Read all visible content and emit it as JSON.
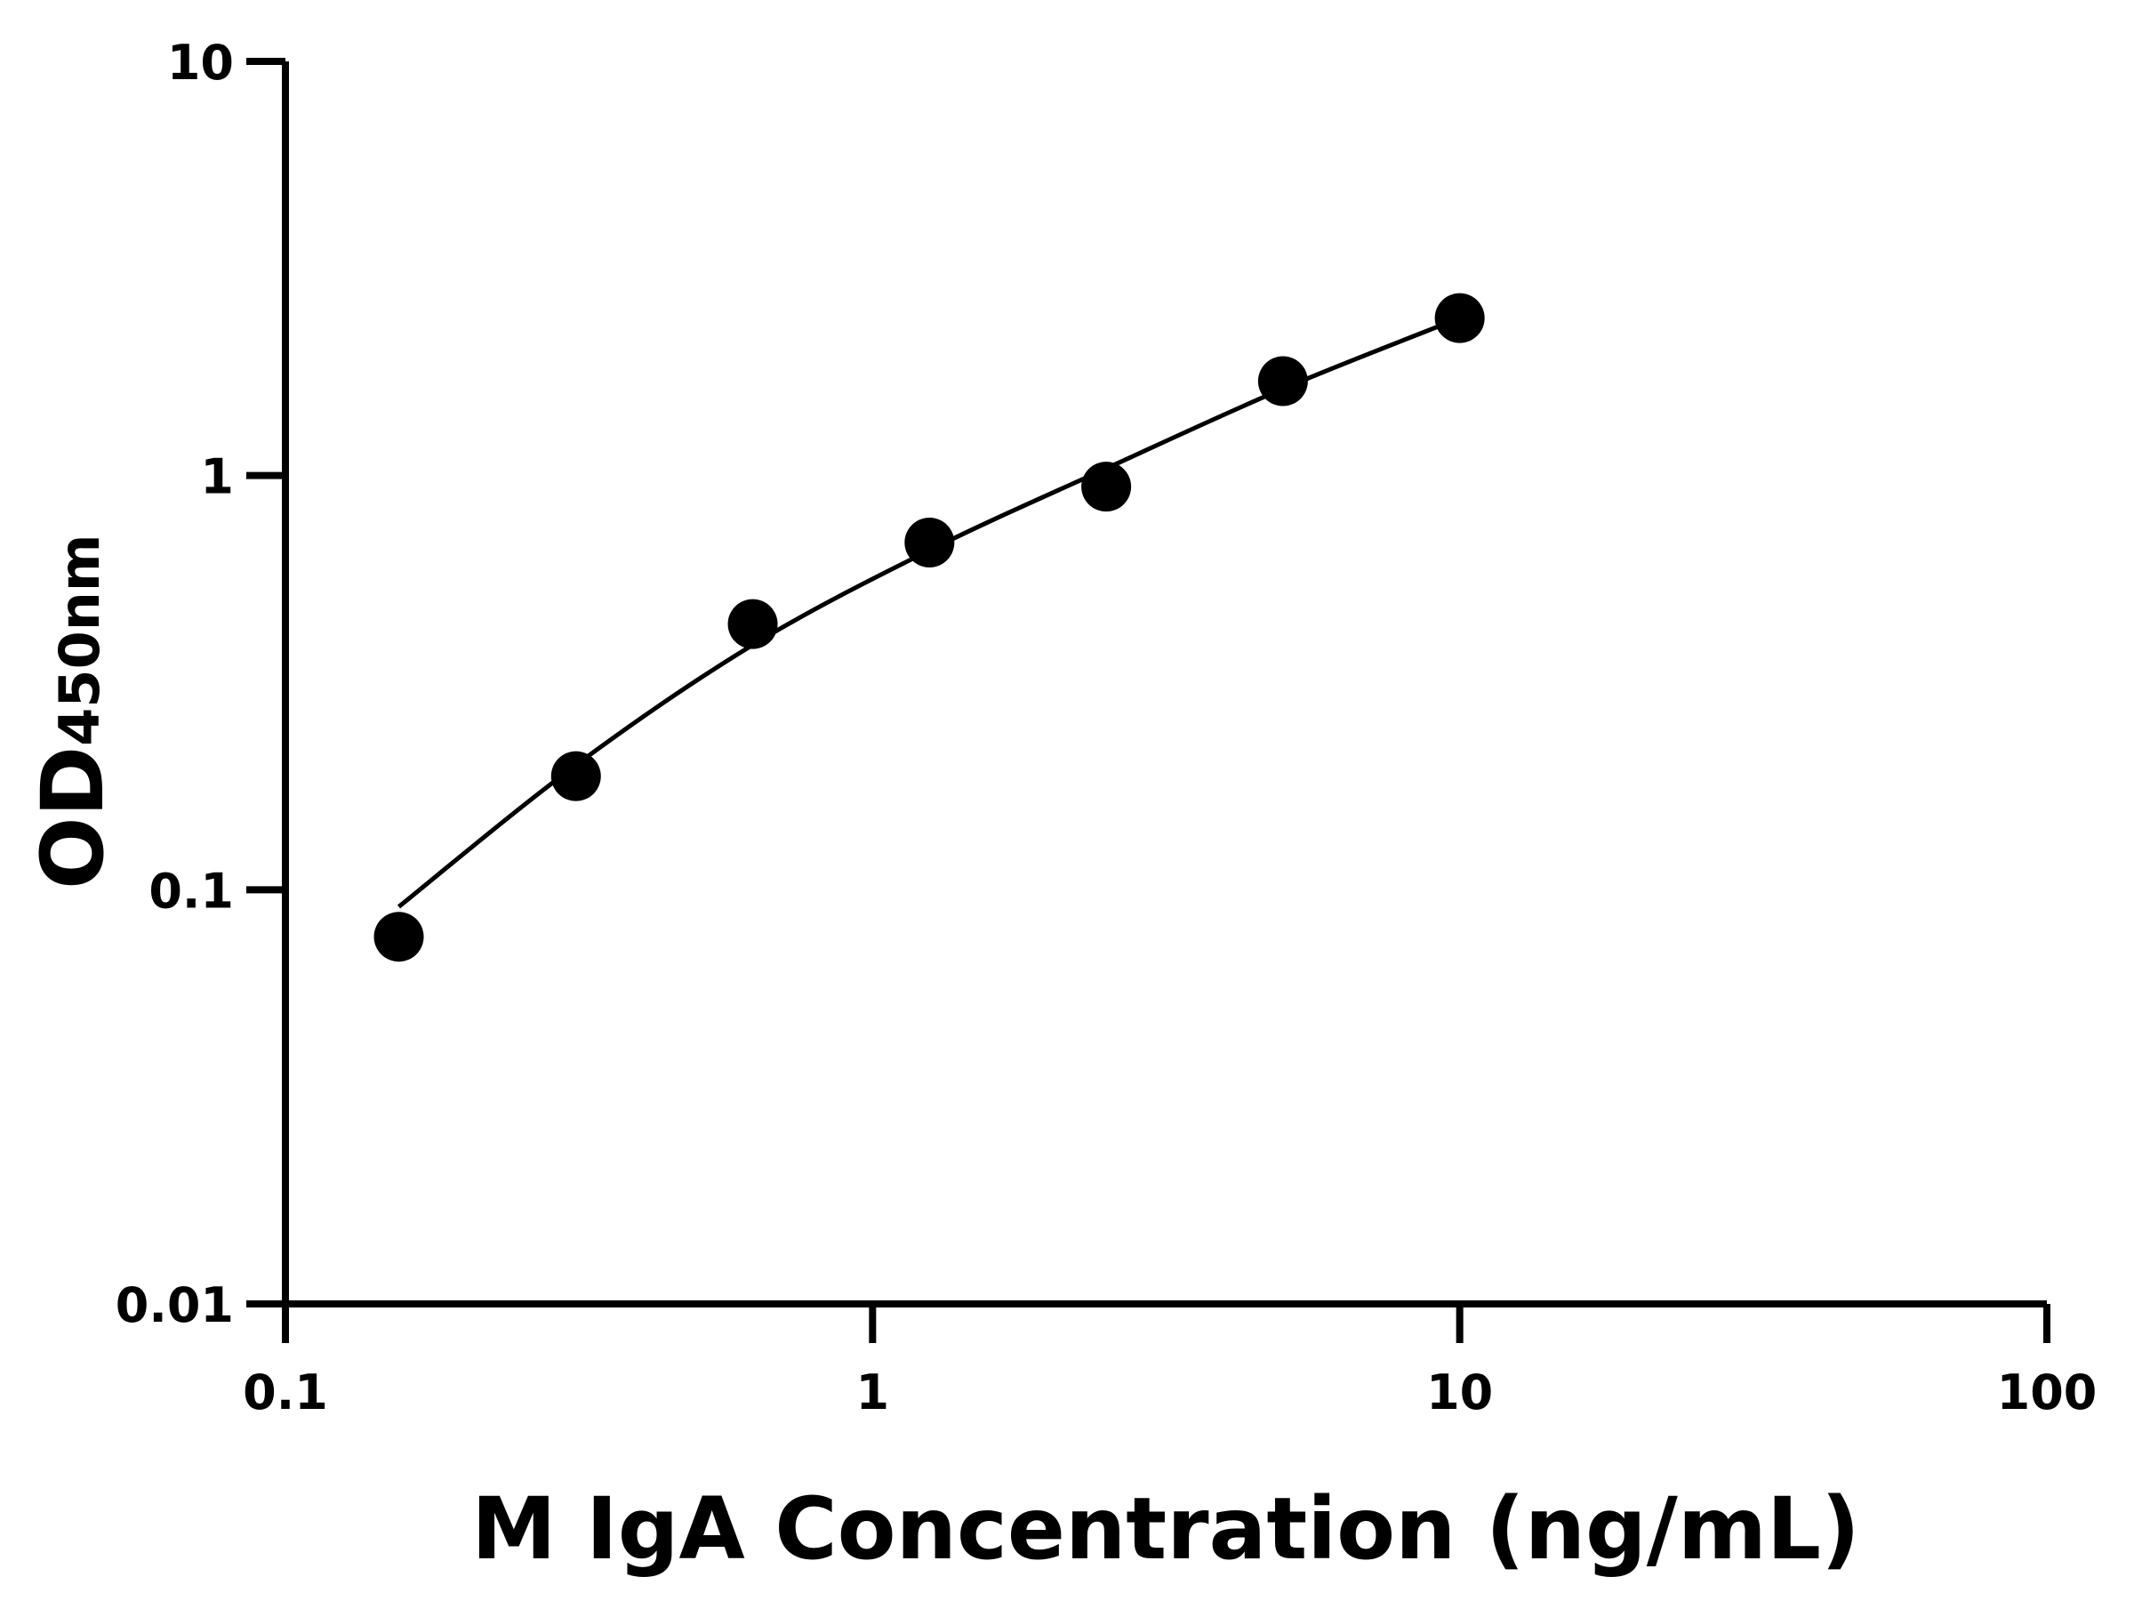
{
  "chart_data": {
    "type": "scatter",
    "title": "",
    "xlabel": "M IgA Concentration (ng/mL)",
    "ylabel": {
      "main": "OD",
      "subscript": "450nm"
    },
    "xscale": "log",
    "yscale": "log",
    "xlim": [
      0.1,
      100
    ],
    "ylim": [
      0.01,
      10
    ],
    "xticks": [
      "0.1",
      "1",
      "10",
      "100"
    ],
    "yticks": [
      "0.01",
      "0.1",
      "1",
      "10"
    ],
    "grid": false,
    "colors": {
      "points": "#000000",
      "curve": "#000000",
      "axes": "#000000"
    },
    "points": {
      "x": [
        0.156,
        0.3125,
        0.625,
        1.25,
        2.5,
        5,
        10
      ],
      "y": [
        0.077,
        0.188,
        0.438,
        0.689,
        0.94,
        1.69,
        2.4
      ]
    },
    "fit_curve": {
      "x": [
        0.156,
        0.3125,
        0.625,
        1.25,
        2.5,
        5,
        10
      ],
      "y": [
        0.091,
        0.2,
        0.39,
        0.66,
        1.04,
        1.62,
        2.4
      ]
    }
  }
}
